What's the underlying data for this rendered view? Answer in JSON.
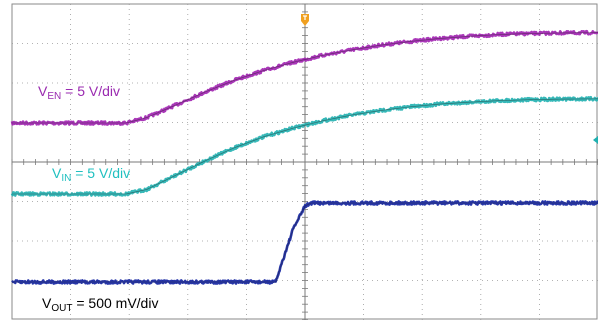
{
  "chart_data": {
    "type": "line",
    "grid": true,
    "x_divisions": 10,
    "y_divisions": 8,
    "trigger_marker_color": "#f0a020",
    "series": [
      {
        "name": "VEN",
        "label": {
          "main": "V",
          "sub": "EN",
          "suffix": " = 5 V/div"
        },
        "color": "#a020b0",
        "label_color": "#9a2ab0",
        "y_range_div": [
          -8,
          8
        ],
        "x": [
          0,
          1.95,
          2.3,
          2.8,
          3.3,
          3.8,
          4.3,
          4.8,
          5.3,
          5.8,
          6.3,
          6.8,
          7.3,
          7.8,
          8.3,
          8.8,
          9.3,
          10
        ],
        "values": [
          0,
          0,
          0.18,
          0.6,
          1.03,
          1.42,
          1.74,
          2.01,
          2.24,
          2.42,
          2.58,
          2.7,
          2.8,
          2.87,
          2.93,
          2.96,
          2.98,
          2.99
        ]
      },
      {
        "name": "VIN",
        "label": {
          "main": "V",
          "sub": "IN",
          "suffix": " = 5 V/div"
        },
        "color": "#20b0b0",
        "label_color": "#20c0c0",
        "y_range_div": [
          -8,
          8
        ],
        "x": [
          0,
          1.95,
          2.3,
          2.8,
          3.3,
          3.8,
          4.3,
          4.8,
          5.3,
          5.8,
          6.3,
          6.8,
          7.3,
          7.8,
          8.3,
          8.8,
          9.3,
          10
        ],
        "values": [
          0,
          0,
          0.15,
          0.62,
          1.09,
          1.52,
          1.88,
          2.16,
          2.4,
          2.59,
          2.74,
          2.86,
          2.95,
          3.01,
          3.06,
          3.09,
          3.11,
          3.12
        ]
      },
      {
        "name": "VOUT",
        "label": {
          "main": "V",
          "sub": "OUT",
          "suffix": " = 500 mV/div"
        },
        "color": "#1020a0",
        "label_color": "#000000",
        "y_range_div": [
          -8,
          8
        ],
        "x": [
          0,
          4.5,
          4.62,
          4.8,
          5.0,
          5.1,
          5.3,
          6.0,
          7.0,
          8.0,
          9.0,
          10
        ],
        "values": [
          0,
          0,
          0.55,
          1.35,
          1.92,
          2.0,
          2.0,
          2.0,
          2.0,
          2.0,
          2.0,
          2.0
        ]
      }
    ]
  }
}
